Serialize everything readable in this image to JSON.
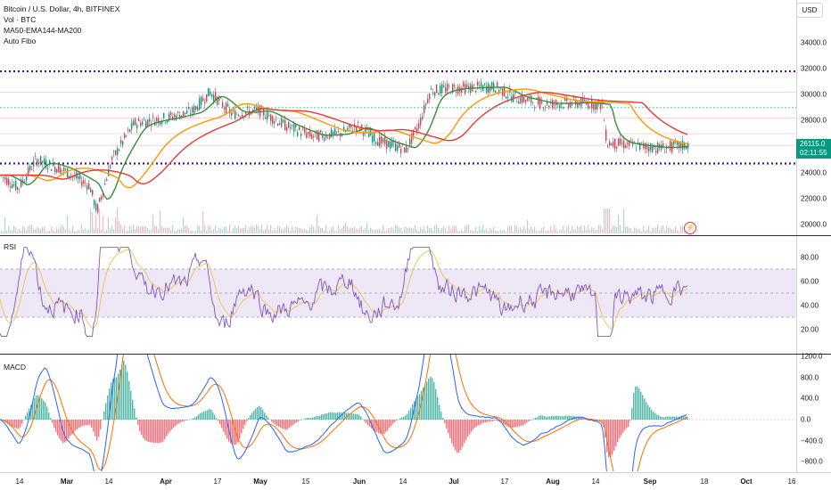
{
  "symbol": {
    "title": "Bitcoin / U.S. Dollar, 4h, BITFINEX",
    "indicators": [
      "Vol · BTC",
      "MA50-EMA144-MA200",
      "Auto Fibo"
    ],
    "currency_button": "USD",
    "last_price": "26115.0",
    "countdown": "02:11:55"
  },
  "price_axis": {
    "ticks": [
      "34000.0",
      "32000.0",
      "30000.0",
      "28000.0",
      "26000.0",
      "24000.0",
      "22000.0",
      "20000.0"
    ],
    "tick_values": [
      34000,
      32000,
      30000,
      28000,
      26000,
      24000,
      22000,
      20000
    ]
  },
  "rsi": {
    "label": "RSI",
    "ticks": [
      "80.00",
      "60.00",
      "40.00",
      "20.00"
    ],
    "tick_values": [
      80,
      60,
      40,
      20
    ],
    "upper_band": 70,
    "lower_band": 30,
    "mid": 50
  },
  "macd": {
    "label": "MACD",
    "ticks": [
      "1200.0",
      "800.0",
      "400.0",
      "0.0",
      "−400.0",
      "−800.0"
    ],
    "tick_values": [
      1200,
      800,
      400,
      0,
      -400,
      -800
    ]
  },
  "time_axis": {
    "labels": [
      {
        "text": "14",
        "bold": false
      },
      {
        "text": "Mar",
        "bold": true
      },
      {
        "text": "14",
        "bold": false
      },
      {
        "text": "Apr",
        "bold": true
      },
      {
        "text": "17",
        "bold": false
      },
      {
        "text": "May",
        "bold": true
      },
      {
        "text": "15",
        "bold": false
      },
      {
        "text": "Jun",
        "bold": true
      },
      {
        "text": "14",
        "bold": false
      },
      {
        "text": "Jul",
        "bold": true
      },
      {
        "text": "17",
        "bold": false
      },
      {
        "text": "Aug",
        "bold": true
      },
      {
        "text": "14",
        "bold": false
      },
      {
        "text": "Sep",
        "bold": true
      },
      {
        "text": "18",
        "bold": false
      },
      {
        "text": "Oct",
        "bold": true
      },
      {
        "text": "16",
        "bold": false
      }
    ]
  },
  "colors": {
    "up": "#089981",
    "down": "#f23645",
    "ma50": "#ff9800",
    "ema144": "#388e3c",
    "ma200": "#e53935",
    "rsi_line": "#7e57c2",
    "rsi_band": "#ede7f6",
    "macd_line": "#2962ff",
    "signal_line": "#ff6d00",
    "fib_level": "#4a148c"
  },
  "chart_data": {
    "type": "candlestick",
    "fib_levels": [
      31800,
      24700
    ],
    "series": [
      {
        "name": "MA50-EMA144-MA200",
        "values": []
      }
    ]
  }
}
